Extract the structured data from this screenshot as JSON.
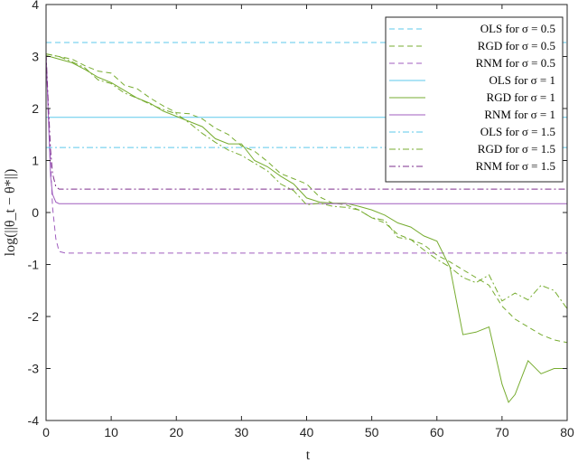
{
  "chart_data": {
    "type": "line",
    "xlabel": "t",
    "ylabel": "log(||θ_t − θ*||)",
    "xlim": [
      0,
      80
    ],
    "ylim": [
      -4,
      4
    ],
    "xticks": [
      "0",
      "10",
      "20",
      "30",
      "40",
      "50",
      "60",
      "70",
      "80"
    ],
    "yticks": [
      "4",
      "3",
      "2",
      "1",
      "0",
      "-1",
      "-2",
      "-3",
      "-4"
    ],
    "grid": false,
    "legend_position": "top-right",
    "series": [
      {
        "name": "OLS for σ = 0.5",
        "color": "#5ec9eb",
        "dash": "dashed",
        "x": [
          0,
          80
        ],
        "y": [
          3.27,
          3.27
        ]
      },
      {
        "name": "RGD for σ = 0.5",
        "color": "#77ac30",
        "dash": "dashed",
        "x": [
          0,
          2,
          4,
          6,
          8,
          10,
          12,
          14,
          16,
          18,
          20,
          22,
          24,
          26,
          28,
          30,
          32,
          34,
          36,
          38,
          40,
          42,
          44,
          46,
          48,
          50,
          52,
          54,
          56,
          58,
          60,
          62,
          64,
          66,
          68,
          70,
          72,
          74,
          76,
          78,
          80
        ],
        "y": [
          3.05,
          3.0,
          2.95,
          2.82,
          2.72,
          2.68,
          2.45,
          2.38,
          2.2,
          2.05,
          1.92,
          1.9,
          1.8,
          1.62,
          1.5,
          1.28,
          1.18,
          0.98,
          0.75,
          0.65,
          0.55,
          0.3,
          0.18,
          0.15,
          0.05,
          -0.1,
          -0.2,
          -0.42,
          -0.52,
          -0.62,
          -0.82,
          -0.95,
          -1.1,
          -1.25,
          -1.4,
          -1.8,
          -2.05,
          -2.2,
          -2.35,
          -2.45,
          -2.5
        ]
      },
      {
        "name": "RNM for σ = 0.5",
        "color": "#a05ebf",
        "dash": "dashed",
        "x": [
          0,
          0.5,
          1,
          1.5,
          2,
          3,
          80
        ],
        "y": [
          3.05,
          1.5,
          0.1,
          -0.5,
          -0.75,
          -0.78,
          -0.78
        ]
      },
      {
        "name": "OLS for σ = 1",
        "color": "#5ec9eb",
        "dash": "solid",
        "x": [
          0,
          80
        ],
        "y": [
          1.83,
          1.83
        ]
      },
      {
        "name": "RGD for σ = 1",
        "color": "#77ac30",
        "dash": "solid",
        "x": [
          0,
          2,
          4,
          6,
          8,
          10,
          12,
          14,
          16,
          18,
          20,
          22,
          24,
          26,
          28,
          30,
          32,
          34,
          36,
          38,
          40,
          42,
          44,
          46,
          48,
          50,
          52,
          54,
          56,
          58,
          60,
          62,
          64,
          66,
          68,
          70,
          71,
          72,
          74,
          76,
          78,
          80
        ],
        "y": [
          3.02,
          2.95,
          2.88,
          2.75,
          2.6,
          2.5,
          2.35,
          2.2,
          2.1,
          1.95,
          1.85,
          1.75,
          1.65,
          1.42,
          1.32,
          1.32,
          1.0,
          0.88,
          0.7,
          0.55,
          0.28,
          0.2,
          0.18,
          0.18,
          0.12,
          0.05,
          -0.05,
          -0.2,
          -0.28,
          -0.45,
          -0.55,
          -1.05,
          -2.35,
          -2.3,
          -2.2,
          -3.3,
          -3.65,
          -3.5,
          -2.85,
          -3.1,
          -3.0,
          -3.0
        ]
      },
      {
        "name": "RNM for σ = 1",
        "color": "#a05ebf",
        "dash": "solid",
        "x": [
          0,
          0.3,
          0.7,
          1,
          1.5,
          2,
          80
        ],
        "y": [
          3.05,
          2.0,
          0.7,
          0.35,
          0.2,
          0.17,
          0.17
        ]
      },
      {
        "name": "OLS for σ = 1.5",
        "color": "#5ec9eb",
        "dash": "dashdot",
        "x": [
          0,
          80
        ],
        "y": [
          1.25,
          1.25
        ]
      },
      {
        "name": "RGD for σ = 1.5",
        "color": "#77ac30",
        "dash": "dashdot",
        "x": [
          0,
          2,
          4,
          6,
          8,
          10,
          12,
          14,
          16,
          18,
          20,
          22,
          24,
          26,
          28,
          30,
          32,
          34,
          36,
          38,
          40,
          42,
          44,
          46,
          48,
          50,
          52,
          54,
          56,
          58,
          60,
          62,
          64,
          66,
          68,
          70,
          72,
          74,
          76,
          78,
          80
        ],
        "y": [
          3.05,
          3.0,
          2.9,
          2.78,
          2.55,
          2.48,
          2.3,
          2.2,
          2.08,
          1.98,
          1.9,
          1.72,
          1.52,
          1.35,
          1.2,
          1.1,
          0.95,
          0.8,
          0.55,
          0.42,
          0.15,
          0.18,
          0.12,
          0.1,
          0.05,
          -0.1,
          -0.15,
          -0.48,
          -0.52,
          -0.72,
          -0.9,
          -1.05,
          -1.25,
          -1.35,
          -1.2,
          -1.7,
          -1.55,
          -1.68,
          -1.4,
          -1.5,
          -1.85
        ]
      },
      {
        "name": "RNM for σ = 1.5",
        "color": "#7e2f8e",
        "dash": "dashdot",
        "x": [
          0,
          0.3,
          0.7,
          1,
          1.5,
          2,
          80
        ],
        "y": [
          3.05,
          2.2,
          1.2,
          0.75,
          0.5,
          0.45,
          0.45
        ]
      }
    ]
  }
}
